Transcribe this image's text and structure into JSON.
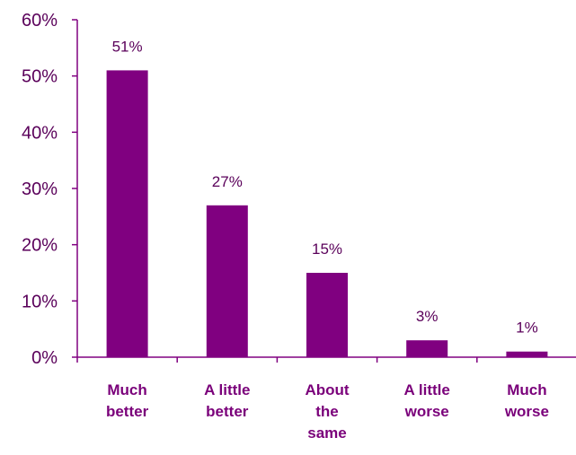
{
  "chart_data": {
    "type": "bar",
    "title": "",
    "xlabel": "",
    "ylabel": "",
    "categories": [
      "Much better",
      "A little better",
      "About the same",
      "A little worse",
      "Much worse"
    ],
    "category_lines": [
      [
        "Much",
        "better"
      ],
      [
        "A little",
        "better"
      ],
      [
        "About",
        "the",
        "same"
      ],
      [
        "A little",
        "worse"
      ],
      [
        "Much",
        "worse"
      ]
    ],
    "values": [
      51,
      27,
      15,
      3,
      1
    ],
    "data_labels": [
      "51%",
      "27%",
      "15%",
      "3%",
      "1%"
    ],
    "ylim": [
      0,
      60
    ],
    "yticks": [
      0,
      10,
      20,
      30,
      40,
      50,
      60
    ],
    "ytick_labels": [
      "0%",
      "10%",
      "20%",
      "30%",
      "40%",
      "50%",
      "60%"
    ],
    "grid": false,
    "legend": "none",
    "colors": {
      "bar": "#800080",
      "axis": "#800080",
      "tick_text": "#5a005a",
      "category_text": "#7a007a"
    }
  }
}
